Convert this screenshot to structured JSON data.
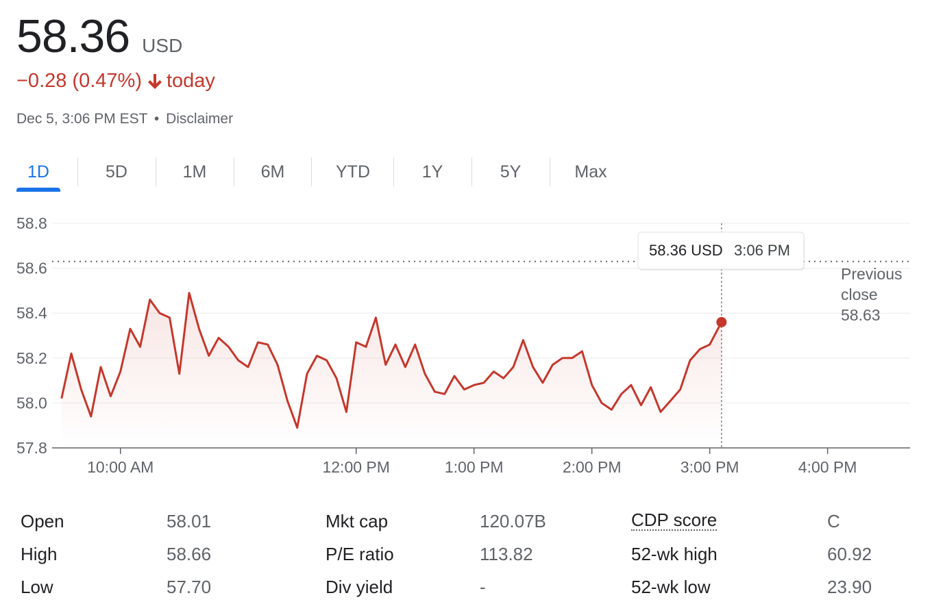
{
  "quote": {
    "price": "58.36",
    "currency": "USD",
    "change": "−0.28 (0.47%)",
    "change_suffix": "today",
    "timestamp": "Dec 5, 3:06 PM EST",
    "separator": "•",
    "disclaimer": "Disclaimer",
    "down_color": "#c5372c",
    "accent_color": "#1a73e8"
  },
  "tabs": [
    {
      "label": "1D",
      "active": true
    },
    {
      "label": "5D",
      "active": false
    },
    {
      "label": "1M",
      "active": false
    },
    {
      "label": "6M",
      "active": false
    },
    {
      "label": "YTD",
      "active": false
    },
    {
      "label": "1Y",
      "active": false
    },
    {
      "label": "5Y",
      "active": false
    },
    {
      "label": "Max",
      "active": false
    }
  ],
  "chart_data": {
    "type": "line",
    "series": [
      {
        "values": [
          [
            9.5,
            58.02
          ],
          [
            9.583,
            58.22
          ],
          [
            9.667,
            58.06
          ],
          [
            9.75,
            57.94
          ],
          [
            9.833,
            58.16
          ],
          [
            9.917,
            58.03
          ],
          [
            10.0,
            58.14
          ],
          [
            10.083,
            58.33
          ],
          [
            10.167,
            58.25
          ],
          [
            10.25,
            58.46
          ],
          [
            10.333,
            58.4
          ],
          [
            10.417,
            58.38
          ],
          [
            10.5,
            58.13
          ],
          [
            10.583,
            58.49
          ],
          [
            10.667,
            58.33
          ],
          [
            10.75,
            58.21
          ],
          [
            10.833,
            58.29
          ],
          [
            10.917,
            58.25
          ],
          [
            11.0,
            58.19
          ],
          [
            11.083,
            58.16
          ],
          [
            11.167,
            58.27
          ],
          [
            11.25,
            58.26
          ],
          [
            11.333,
            58.17
          ],
          [
            11.417,
            58.01
          ],
          [
            11.5,
            57.89
          ],
          [
            11.583,
            58.13
          ],
          [
            11.667,
            58.21
          ],
          [
            11.75,
            58.19
          ],
          [
            11.833,
            58.11
          ],
          [
            11.917,
            57.96
          ],
          [
            12.0,
            58.27
          ],
          [
            12.083,
            58.25
          ],
          [
            12.167,
            58.38
          ],
          [
            12.25,
            58.17
          ],
          [
            12.333,
            58.26
          ],
          [
            12.417,
            58.16
          ],
          [
            12.5,
            58.26
          ],
          [
            12.583,
            58.13
          ],
          [
            12.667,
            58.05
          ],
          [
            12.75,
            58.04
          ],
          [
            12.833,
            58.12
          ],
          [
            12.917,
            58.06
          ],
          [
            13.0,
            58.08
          ],
          [
            13.083,
            58.09
          ],
          [
            13.167,
            58.14
          ],
          [
            13.25,
            58.11
          ],
          [
            13.333,
            58.16
          ],
          [
            13.417,
            58.28
          ],
          [
            13.5,
            58.16
          ],
          [
            13.583,
            58.09
          ],
          [
            13.667,
            58.17
          ],
          [
            13.75,
            58.2
          ],
          [
            13.833,
            58.2
          ],
          [
            13.917,
            58.23
          ],
          [
            14.0,
            58.08
          ],
          [
            14.083,
            58.0
          ],
          [
            14.167,
            57.97
          ],
          [
            14.25,
            58.04
          ],
          [
            14.333,
            58.08
          ],
          [
            14.417,
            57.99
          ],
          [
            14.5,
            58.07
          ],
          [
            14.583,
            57.96
          ],
          [
            14.667,
            58.01
          ],
          [
            14.75,
            58.06
          ],
          [
            14.833,
            58.19
          ],
          [
            14.917,
            58.24
          ],
          [
            15.0,
            58.26
          ],
          [
            15.1,
            58.36
          ]
        ],
        "color": "#c5372c"
      }
    ],
    "y_ticks": [
      "58.8",
      "58.6",
      "58.4",
      "58.2",
      "58.0",
      "57.8"
    ],
    "x_ticks": [
      {
        "value": 10,
        "label": "10:00 AM"
      },
      {
        "value": 12,
        "label": "12:00 PM"
      },
      {
        "value": 13,
        "label": "1:00 PM"
      },
      {
        "value": 14,
        "label": "2:00 PM"
      },
      {
        "value": 15,
        "label": "3:00 PM"
      },
      {
        "value": 16,
        "label": "4:00 PM"
      }
    ],
    "ylim": [
      57.8,
      58.8
    ],
    "xlim": [
      9.42,
      16.7
    ],
    "previous_close": 58.63,
    "previous_close_label": [
      "Previous",
      "close",
      "58.63"
    ],
    "tooltip": {
      "price": "58.36 USD",
      "time": "3:06 PM",
      "x": 15.1,
      "y": 58.36
    },
    "grid": true,
    "legend": "none"
  },
  "stats": [
    [
      {
        "label": "Open",
        "value": "58.01"
      },
      {
        "label": "High",
        "value": "58.66"
      },
      {
        "label": "Low",
        "value": "57.70"
      }
    ],
    [
      {
        "label": "Mkt cap",
        "value": "120.07B"
      },
      {
        "label": "P/E ratio",
        "value": "113.82"
      },
      {
        "label": "Div yield",
        "value": "-"
      }
    ],
    [
      {
        "label": "CDP score",
        "value": "C"
      },
      {
        "label": "52-wk high",
        "value": "60.92"
      },
      {
        "label": "52-wk low",
        "value": "23.90"
      }
    ]
  ]
}
